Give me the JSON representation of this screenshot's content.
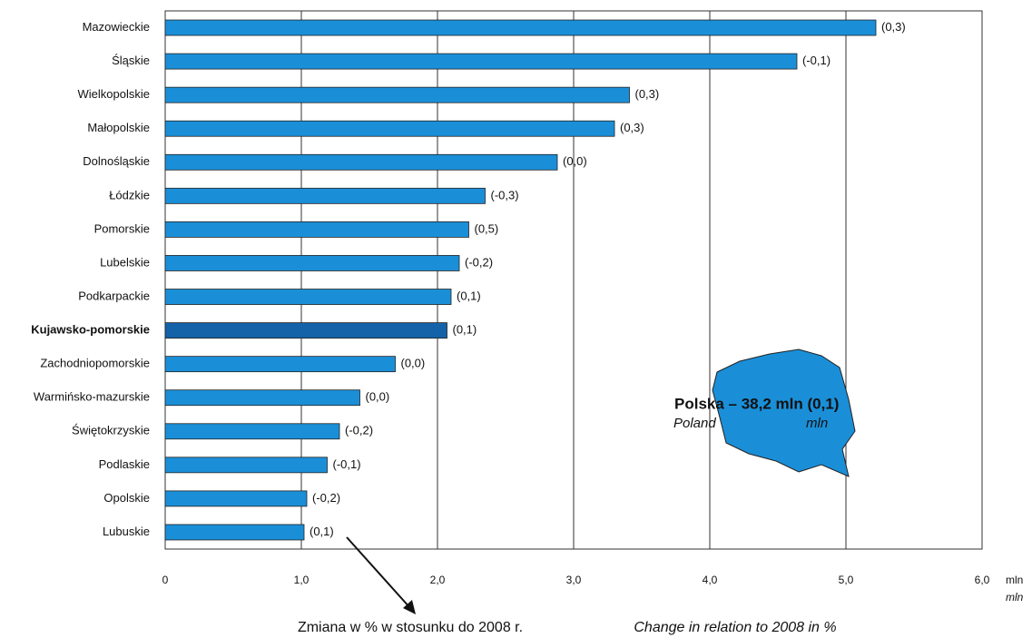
{
  "chart_data": {
    "type": "barh",
    "categories": [
      "Mazowieckie",
      "Śląskie",
      "Wielkopolskie",
      "Małopolskie",
      "Dolnośląskie",
      "Łódzkie",
      "Pomorskie",
      "Lubelskie",
      "Podkarpackie",
      "Kujawsko-pomorskie",
      "Zachodniopomorskie",
      "Warmińsko-mazurskie",
      "Świętokrzyskie",
      "Podlaskie",
      "Opolskie",
      "Lubuskie"
    ],
    "values": [
      5.22,
      4.64,
      3.41,
      3.3,
      2.88,
      2.35,
      2.23,
      2.16,
      2.1,
      2.07,
      1.69,
      1.43,
      1.28,
      1.19,
      1.04,
      1.02
    ],
    "change_labels": [
      "(0,3)",
      "(-0,1)",
      "(0,3)",
      "(0,3)",
      "(0,0)",
      "(-0,3)",
      "(0,5)",
      "(-0,2)",
      "(0,1)",
      "(0,1)",
      "(0,0)",
      "(0,0)",
      "(-0,2)",
      "(-0,1)",
      "(-0,2)",
      "(0,1)"
    ],
    "color": "#1a8fd8",
    "highlight_index": 9,
    "highlight_color": "#1462a8",
    "xlim": [
      0,
      6
    ],
    "xticks": [
      0,
      {
        "value": 1,
        "label": "1,0"
      },
      {
        "value": 2,
        "label": "2,0"
      },
      {
        "value": 3,
        "label": "3,0"
      },
      {
        "value": 4,
        "label": "4,0"
      },
      {
        "value": 5,
        "label": "5,0"
      },
      {
        "value": 6,
        "label": "6,0"
      }
    ],
    "x_unit": "mln",
    "x_unit_en": "mln",
    "grid": true,
    "map_title": "Polska – 38,2 mln (0,1)",
    "map_subtitle": "Poland",
    "map_unit_en": "mln",
    "caption": "Zmiana w % w stosunku do 2008 r.",
    "caption_en": "Change in relation to 2008 in %"
  }
}
